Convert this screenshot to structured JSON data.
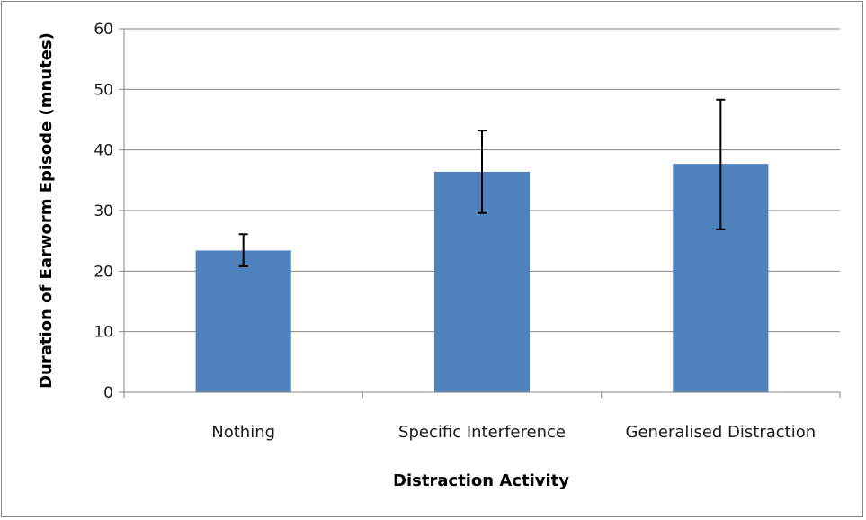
{
  "chart_data": {
    "type": "bar",
    "categories": [
      "Nothing",
      "Specific Interference",
      "Generalised Distraction"
    ],
    "values": [
      23.4,
      36.4,
      37.7
    ],
    "error_low": [
      20.8,
      29.6,
      26.9
    ],
    "error_high": [
      26.1,
      43.2,
      48.3
    ],
    "title": "",
    "xlabel": "Distraction Activity",
    "ylabel": "Duration of Earworm Episode (mnutes)",
    "ylim": [
      0,
      60
    ],
    "yticks": [
      0,
      10,
      20,
      30,
      40,
      50,
      60
    ],
    "grid": true,
    "legend": "none",
    "colors": {
      "bar": "#4f81bd",
      "grid": "#868686",
      "error_bar": "#000000"
    }
  }
}
